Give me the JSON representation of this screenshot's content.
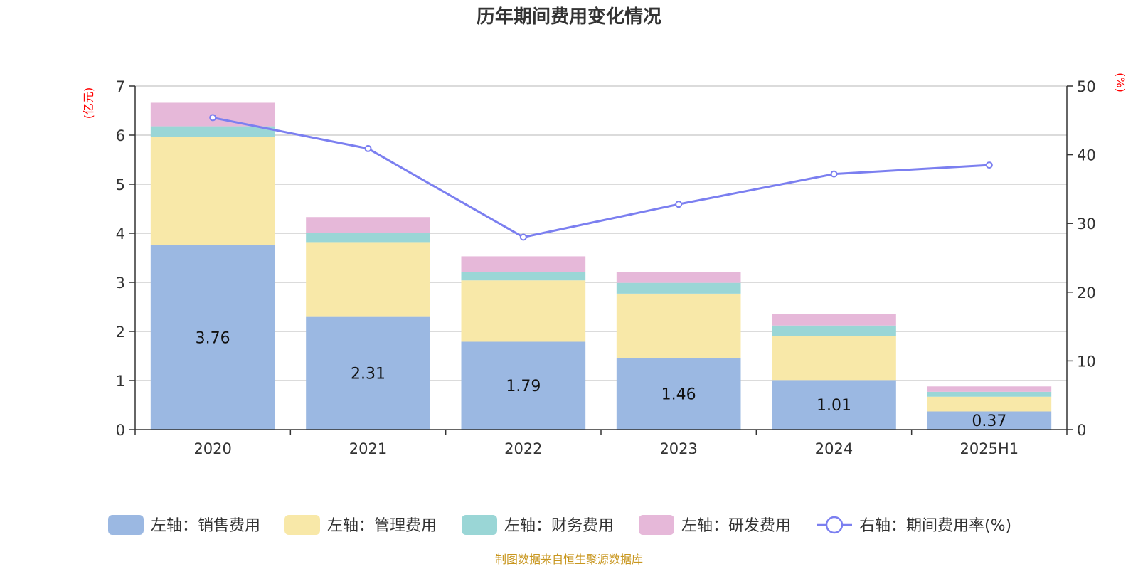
{
  "title": "历年期间费用变化情况",
  "source": "制图数据来自恒生聚源数据库",
  "chart_data": {
    "type": "bar",
    "stacked": true,
    "categories": [
      "2020",
      "2021",
      "2022",
      "2023",
      "2024",
      "2025H1"
    ],
    "left_axis": {
      "unit": "(亿元)",
      "ylim": [
        0,
        7
      ],
      "ticks": [
        "0",
        "1",
        "2",
        "3",
        "4",
        "5",
        "6",
        "7"
      ]
    },
    "right_axis": {
      "unit": "(%)",
      "ylim": [
        0,
        50
      ],
      "ticks": [
        "0",
        "10",
        "20",
        "30",
        "40",
        "50"
      ]
    },
    "grid": true,
    "legend_position": "bottom",
    "series": [
      {
        "name": "左轴：销售费用",
        "color": "#9bb8e2",
        "values": [
          3.76,
          2.31,
          1.79,
          1.46,
          1.01,
          0.37
        ],
        "labels": [
          "3.76",
          "2.31",
          "1.79",
          "1.46",
          "1.01",
          "0.37"
        ]
      },
      {
        "name": "左轴：管理费用",
        "color": "#f8e8a8",
        "values": [
          2.2,
          1.51,
          1.25,
          1.31,
          0.9,
          0.3
        ]
      },
      {
        "name": "左轴：财务费用",
        "color": "#9ad6d6",
        "values": [
          0.22,
          0.18,
          0.17,
          0.22,
          0.21,
          0.1
        ]
      },
      {
        "name": "左轴：研发费用",
        "color": "#e6b8d9",
        "values": [
          0.48,
          0.33,
          0.32,
          0.22,
          0.23,
          0.11
        ]
      }
    ],
    "line": {
      "name": "右轴：期间费用率(%)",
      "color": "#7b7ff0",
      "values": [
        45.4,
        40.9,
        28.0,
        32.8,
        37.2,
        38.5
      ]
    }
  }
}
